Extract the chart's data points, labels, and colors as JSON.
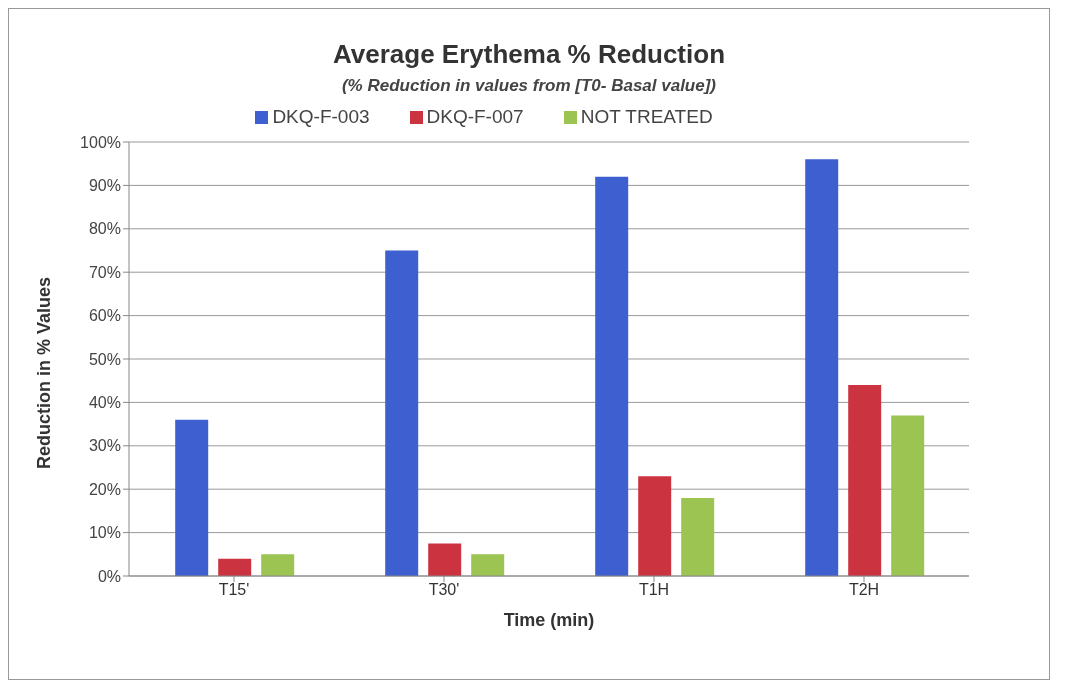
{
  "chart_data": {
    "type": "bar",
    "title": "Average Erythema % Reduction",
    "subtitle": "(% Reduction in values from [T0- Basal value])",
    "xlabel": "Time (min)",
    "ylabel": "Reduction in % Values",
    "categories": [
      "T15'",
      "T30'",
      "T1H",
      "T2H"
    ],
    "series": [
      {
        "name": "DKQ-F-003",
        "color": "#3d5fd0",
        "values": [
          36,
          75,
          92,
          96
        ]
      },
      {
        "name": "DKQ-F-007",
        "color": "#cc3340",
        "values": [
          4,
          7.5,
          23,
          44
        ]
      },
      {
        "name": "NOT TREATED",
        "color": "#9cc452",
        "values": [
          5,
          5,
          18,
          37
        ]
      }
    ],
    "ylim": [
      0,
      100
    ],
    "yticks": [
      {
        "value": 0,
        "label": "0%"
      },
      {
        "value": 10,
        "label": "10%"
      },
      {
        "value": 20,
        "label": "20%"
      },
      {
        "value": 30,
        "label": "30%"
      },
      {
        "value": 40,
        "label": "40%"
      },
      {
        "value": 50,
        "label": "50%"
      },
      {
        "value": 60,
        "label": "60%"
      },
      {
        "value": 70,
        "label": "70%"
      },
      {
        "value": 80,
        "label": "80%"
      },
      {
        "value": 90,
        "label": "90%"
      },
      {
        "value": 100,
        "label": "100%"
      }
    ],
    "grid": "y",
    "legend": "top"
  }
}
